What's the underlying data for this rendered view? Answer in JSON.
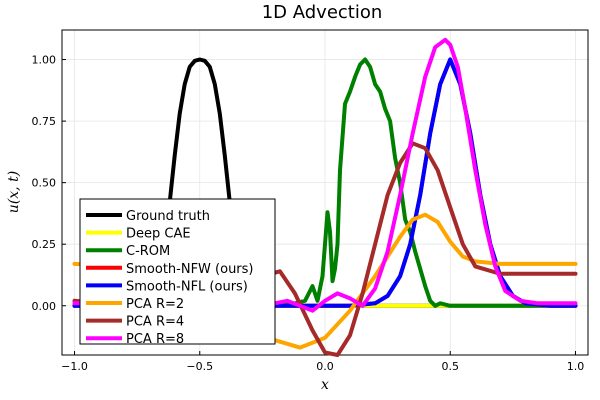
{
  "chart_data": {
    "type": "line",
    "title": "1D Advection",
    "xlabel": "x",
    "ylabel": "u(x, t)",
    "xlim": [
      -1.05,
      1.05
    ],
    "ylim": [
      -0.2,
      1.12
    ],
    "xticks": [
      -1.0,
      -0.5,
      0.0,
      0.5,
      1.0
    ],
    "xtick_labels": [
      "−1.0",
      "−0.5",
      "0.0",
      "0.5",
      "1.0"
    ],
    "yticks": [
      0.0,
      0.25,
      0.5,
      0.75,
      1.0
    ],
    "ytick_labels": [
      "0.00",
      "0.25",
      "0.50",
      "0.75",
      "1.00"
    ],
    "grid": true,
    "legend_position": "bottom-left",
    "series": [
      {
        "name": "Ground truth",
        "color": "#000000",
        "x": [
          -1.0,
          -0.8,
          -0.72,
          -0.68,
          -0.66,
          -0.64,
          -0.62,
          -0.6,
          -0.58,
          -0.56,
          -0.54,
          -0.52,
          -0.5,
          -0.48,
          -0.46,
          -0.44,
          -0.42,
          -0.4,
          -0.38,
          -0.36,
          -0.34,
          -0.32,
          -0.28,
          -0.2,
          0.0,
          0.3,
          0.6,
          1.0
        ],
        "y": [
          0.0,
          0.0,
          0.0,
          0.02,
          0.1,
          0.25,
          0.42,
          0.61,
          0.78,
          0.9,
          0.97,
          0.995,
          1.0,
          0.995,
          0.97,
          0.9,
          0.78,
          0.61,
          0.42,
          0.25,
          0.1,
          0.02,
          0.0,
          0.0,
          0.0,
          0.0,
          0.0,
          0.0
        ]
      },
      {
        "name": "Deep CAE",
        "color": "#ffff00",
        "x": [
          -1.0,
          1.0
        ],
        "y": [
          0.0,
          0.0
        ]
      },
      {
        "name": "C-ROM",
        "color": "#008000",
        "x": [
          -1.0,
          -0.2,
          -0.12,
          -0.08,
          -0.05,
          -0.03,
          -0.01,
          0.0,
          0.01,
          0.02,
          0.03,
          0.04,
          0.05,
          0.06,
          0.08,
          0.1,
          0.12,
          0.14,
          0.16,
          0.18,
          0.2,
          0.22,
          0.24,
          0.26,
          0.28,
          0.3,
          0.32,
          0.34,
          0.36,
          0.38,
          0.4,
          0.42,
          0.44,
          0.46,
          0.5,
          0.6,
          0.8,
          1.0
        ],
        "y": [
          0.0,
          0.0,
          0.01,
          0.02,
          0.08,
          0.02,
          0.12,
          0.25,
          0.38,
          0.3,
          0.1,
          0.15,
          0.25,
          0.55,
          0.82,
          0.87,
          0.93,
          0.98,
          1.0,
          0.97,
          0.9,
          0.87,
          0.8,
          0.75,
          0.6,
          0.5,
          0.35,
          0.3,
          0.22,
          0.15,
          0.08,
          0.02,
          0.0,
          0.01,
          0.0,
          0.0,
          0.0,
          0.0
        ]
      },
      {
        "name": "Smooth-NFW (ours)",
        "color": "#ff0000",
        "x": [
          -1.0,
          0.1,
          0.2,
          0.25,
          0.3,
          0.34,
          0.38,
          0.42,
          0.46,
          0.5,
          0.54,
          0.58,
          0.62,
          0.66,
          0.7,
          0.75,
          0.8,
          0.9,
          1.0
        ],
        "y": [
          0.0,
          0.0,
          0.01,
          0.04,
          0.12,
          0.25,
          0.45,
          0.7,
          0.9,
          1.0,
          0.9,
          0.7,
          0.45,
          0.25,
          0.12,
          0.04,
          0.01,
          0.0,
          0.0
        ]
      },
      {
        "name": "Smooth-NFL (ours)",
        "color": "#0000ff",
        "x": [
          -1.0,
          0.1,
          0.2,
          0.25,
          0.3,
          0.34,
          0.38,
          0.42,
          0.46,
          0.5,
          0.54,
          0.58,
          0.62,
          0.66,
          0.7,
          0.75,
          0.8,
          0.9,
          1.0
        ],
        "y": [
          0.0,
          0.0,
          0.01,
          0.04,
          0.12,
          0.25,
          0.45,
          0.7,
          0.9,
          1.0,
          0.9,
          0.7,
          0.45,
          0.25,
          0.12,
          0.04,
          0.01,
          0.0,
          0.0
        ]
      },
      {
        "name": "PCA R=2",
        "color": "#ffa500",
        "x": [
          -1.0,
          -0.8,
          -0.6,
          -0.4,
          -0.3,
          -0.2,
          -0.1,
          0.0,
          0.1,
          0.2,
          0.3,
          0.35,
          0.4,
          0.45,
          0.5,
          0.55,
          0.6,
          0.7,
          0.8,
          1.0
        ],
        "y": [
          0.17,
          0.16,
          0.1,
          -0.05,
          -0.1,
          -0.14,
          -0.17,
          -0.13,
          -0.02,
          0.12,
          0.28,
          0.35,
          0.37,
          0.34,
          0.26,
          0.2,
          0.18,
          0.17,
          0.17,
          0.17
        ]
      },
      {
        "name": "PCA R=4",
        "color": "#a52a2a",
        "x": [
          -1.0,
          -0.8,
          -0.6,
          -0.45,
          -0.35,
          -0.25,
          -0.18,
          -0.12,
          -0.05,
          0.0,
          0.05,
          0.1,
          0.15,
          0.2,
          0.25,
          0.3,
          0.35,
          0.4,
          0.45,
          0.5,
          0.55,
          0.6,
          0.7,
          0.8,
          1.0
        ],
        "y": [
          0.02,
          0.0,
          -0.05,
          0.0,
          0.12,
          0.12,
          0.14,
          0.05,
          -0.1,
          -0.19,
          -0.2,
          -0.12,
          0.05,
          0.25,
          0.45,
          0.58,
          0.66,
          0.64,
          0.55,
          0.4,
          0.25,
          0.16,
          0.13,
          0.13,
          0.13
        ]
      },
      {
        "name": "PCA R=8",
        "color": "#ff00ff",
        "x": [
          -1.0,
          -0.6,
          -0.45,
          -0.35,
          -0.25,
          -0.15,
          -0.05,
          0.0,
          0.05,
          0.1,
          0.15,
          0.2,
          0.25,
          0.3,
          0.35,
          0.4,
          0.44,
          0.48,
          0.5,
          0.53,
          0.56,
          0.6,
          0.64,
          0.68,
          0.72,
          0.78,
          0.85,
          1.0
        ],
        "y": [
          0.01,
          0.02,
          0.0,
          -0.03,
          0.0,
          0.02,
          -0.02,
          0.02,
          0.05,
          0.03,
          0.0,
          0.07,
          0.22,
          0.45,
          0.7,
          0.93,
          1.05,
          1.08,
          1.06,
          0.97,
          0.8,
          0.55,
          0.33,
          0.16,
          0.06,
          0.02,
          0.01,
          0.01
        ]
      }
    ]
  }
}
